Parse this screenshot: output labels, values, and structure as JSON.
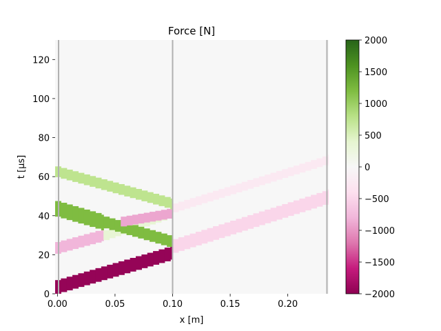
{
  "chart_data": {
    "type": "heatmap",
    "title": "Force [N]",
    "xlabel": "x [m]",
    "ylabel": "t [µs]",
    "xlim": [
      -0.002,
      0.2355
    ],
    "ylim": [
      0,
      130
    ],
    "xticks": [
      {
        "value": 0.0,
        "label": "0.00"
      },
      {
        "value": 0.05,
        "label": "0.05"
      },
      {
        "value": 0.1,
        "label": "0.10"
      },
      {
        "value": 0.15,
        "label": "0.15"
      },
      {
        "value": 0.2,
        "label": "0.20"
      }
    ],
    "yticks": [
      {
        "value": 0,
        "label": "0"
      },
      {
        "value": 20,
        "label": "20"
      },
      {
        "value": 40,
        "label": "40"
      },
      {
        "value": 60,
        "label": "60"
      },
      {
        "value": 80,
        "label": "80"
      },
      {
        "value": 100,
        "label": "100"
      },
      {
        "value": 120,
        "label": "120"
      }
    ],
    "colorbar": {
      "colormap": "PiYG",
      "range": [
        -2000,
        2000
      ],
      "ticks": [
        {
          "value": 2000,
          "label": "2000"
        },
        {
          "value": 1500,
          "label": "1500"
        },
        {
          "value": 1000,
          "label": "1000"
        },
        {
          "value": 500,
          "label": "500"
        },
        {
          "value": 0,
          "label": "0"
        },
        {
          "value": -500,
          "label": "−500"
        },
        {
          "value": -1000,
          "label": "−1000"
        },
        {
          "value": -1500,
          "label": "−1500"
        },
        {
          "value": -2000,
          "label": "−2000"
        }
      ]
    },
    "background_value": 0,
    "vertical_lines_x": [
      0.001,
      0.1,
      0.234
    ],
    "cell_width_m": 0.005,
    "bands": [
      {
        "x": [
          -0.002,
          0.1
        ],
        "t_center": [
          3.5,
          21
        ],
        "thickness": 7,
        "value": -1950
      },
      {
        "x": [
          0.1,
          0.2355
        ],
        "t_center": [
          24.5,
          50
        ],
        "thickness": 7,
        "value": -500
      },
      {
        "x": [
          -0.002,
          0.04
        ],
        "t_center": [
          23.5,
          30
        ],
        "thickness": 6,
        "value": -800
      },
      {
        "x": [
          0.04,
          0.1
        ],
        "t_center": [
          30,
          41
        ],
        "thickness": 5,
        "value": 350
      },
      {
        "x": [
          -0.002,
          0.04
        ],
        "t_center": [
          43.5,
          36.5
        ],
        "thickness": 8,
        "value": 1200
      },
      {
        "x": [
          0.04,
          0.1
        ],
        "t_center": [
          36.5,
          27
        ],
        "thickness": 6,
        "value": 1200
      },
      {
        "x": [
          0.055,
          0.1
        ],
        "t_center": [
          37,
          41
        ],
        "thickness": 5,
        "value": -900
      },
      {
        "x": [
          -0.002,
          0.1
        ],
        "t_center": [
          62.5,
          46
        ],
        "thickness": 5.5,
        "value": 750
      },
      {
        "x": [
          0.1,
          0.2355
        ],
        "t_center": [
          44,
          69
        ],
        "thickness": 4.5,
        "value": -250
      }
    ]
  }
}
